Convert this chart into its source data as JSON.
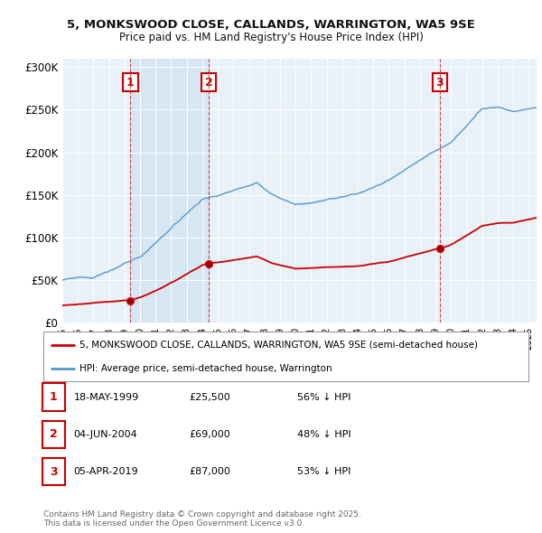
{
  "title1": "5, MONKSWOOD CLOSE, CALLANDS, WARRINGTON, WA5 9SE",
  "title2": "Price paid vs. HM Land Registry's House Price Index (HPI)",
  "ylim": [
    0,
    310000
  ],
  "yticks": [
    0,
    50000,
    100000,
    150000,
    200000,
    250000,
    300000
  ],
  "ytick_labels": [
    "£0",
    "£50K",
    "£100K",
    "£150K",
    "£200K",
    "£250K",
    "£300K"
  ],
  "sale_dates_year": [
    1999.38,
    2004.42,
    2019.26
  ],
  "sale_prices": [
    25500,
    69000,
    87000
  ],
  "sale_labels": [
    "1",
    "2",
    "3"
  ],
  "sale_date_str": [
    "18-MAY-1999",
    "04-JUN-2004",
    "05-APR-2019"
  ],
  "sale_price_str": [
    "£25,500",
    "£69,000",
    "£87,000"
  ],
  "sale_pct_str": [
    "56% ↓ HPI",
    "48% ↓ HPI",
    "53% ↓ HPI"
  ],
  "red_line_color": "#cc0000",
  "blue_line_color": "#5599cc",
  "shade_color": "#ddeeff",
  "background_color": "#e8f0f8",
  "legend_label_red": "5, MONKSWOOD CLOSE, CALLANDS, WARRINGTON, WA5 9SE (semi-detached house)",
  "legend_label_blue": "HPI: Average price, semi-detached house, Warrington",
  "footnote": "Contains HM Land Registry data © Crown copyright and database right 2025.\nThis data is licensed under the Open Government Licence v3.0.",
  "xmin": 1995,
  "xmax": 2025.5
}
